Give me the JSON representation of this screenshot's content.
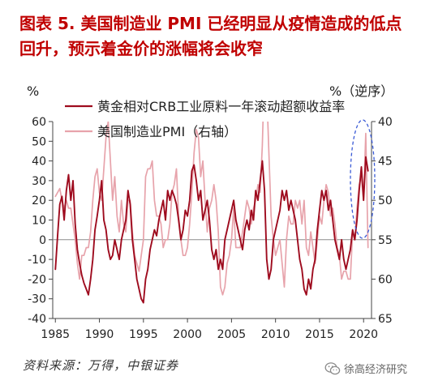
{
  "colors": {
    "title": "#c00000"
  },
  "chart_data": {
    "type": "line",
    "title_lines": [
      "图表 5. 美国制造业 PMI 已经明显从疫情造成的低点",
      "回升，预示着金价的涨幅将会收窄"
    ],
    "ylabel": "%",
    "y2label": "%（逆序）",
    "ylim": [
      -40,
      60
    ],
    "y2lim": [
      40,
      65
    ],
    "y2_reversed": true,
    "xlim": [
      1984.7,
      2020.9
    ],
    "y_ticks": [
      60,
      50,
      40,
      30,
      20,
      10,
      0,
      -10,
      -20,
      -30,
      -40
    ],
    "y2_ticks": [
      40,
      45,
      50,
      55,
      60,
      65
    ],
    "x_ticks": [
      1985,
      1990,
      1995,
      2000,
      2005,
      2010,
      2015,
      2020
    ],
    "grid": false,
    "legend_position": "top-left",
    "highlight_color": "#3b5bd6",
    "x": [
      1985,
      1985.25,
      1985.5,
      1985.75,
      1986,
      1986.25,
      1986.5,
      1986.75,
      1987,
      1987.25,
      1987.5,
      1987.75,
      1988,
      1988.25,
      1988.5,
      1988.75,
      1989,
      1989.25,
      1989.5,
      1989.75,
      1990,
      1990.25,
      1990.5,
      1990.75,
      1991,
      1991.25,
      1991.5,
      1991.75,
      1992,
      1992.25,
      1992.5,
      1992.75,
      1993,
      1993.25,
      1993.5,
      1993.75,
      1994,
      1994.25,
      1994.5,
      1994.75,
      1995,
      1995.25,
      1995.5,
      1995.75,
      1996,
      1996.25,
      1996.5,
      1996.75,
      1997,
      1997.25,
      1997.5,
      1997.75,
      1998,
      1998.25,
      1998.5,
      1998.75,
      1999,
      1999.25,
      1999.5,
      1999.75,
      2000,
      2000.25,
      2000.5,
      2000.75,
      2001,
      2001.25,
      2001.5,
      2001.75,
      2002,
      2002.25,
      2002.5,
      2002.75,
      2003,
      2003.25,
      2003.5,
      2003.75,
      2004,
      2004.25,
      2004.5,
      2004.75,
      2005,
      2005.25,
      2005.5,
      2005.75,
      2006,
      2006.25,
      2006.5,
      2006.75,
      2007,
      2007.25,
      2007.5,
      2007.75,
      2008,
      2008.25,
      2008.5,
      2008.75,
      2009,
      2009.25,
      2009.5,
      2009.75,
      2010,
      2010.25,
      2010.5,
      2010.75,
      2011,
      2011.25,
      2011.5,
      2011.75,
      2012,
      2012.25,
      2012.5,
      2012.75,
      2013,
      2013.25,
      2013.5,
      2013.75,
      2014,
      2014.25,
      2014.5,
      2014.75,
      2015,
      2015.25,
      2015.5,
      2015.75,
      2016,
      2016.25,
      2016.5,
      2016.75,
      2017,
      2017.25,
      2017.5,
      2017.75,
      2018,
      2018.25,
      2018.5,
      2018.75,
      2019,
      2019.25,
      2019.5,
      2019.75,
      2020,
      2020.25,
      2020.5
    ],
    "series": [
      {
        "name": "黄金相对CRB工业原料一年滚动超额收益率",
        "right_axis": false,
        "color": "#9e0b1e",
        "values": [
          -15,
          2,
          18,
          22,
          10,
          25,
          33,
          20,
          30,
          8,
          -5,
          -12,
          -18,
          -22,
          -25,
          -28,
          -20,
          -10,
          5,
          12,
          20,
          30,
          10,
          5,
          -5,
          -10,
          -8,
          0,
          -5,
          -10,
          0,
          5,
          10,
          25,
          18,
          0,
          -10,
          -20,
          -25,
          -30,
          -32,
          -20,
          -15,
          -5,
          0,
          5,
          2,
          10,
          15,
          20,
          10,
          25,
          20,
          25,
          22,
          18,
          10,
          0,
          5,
          15,
          12,
          20,
          35,
          38,
          30,
          20,
          25,
          10,
          15,
          20,
          10,
          -5,
          -10,
          -5,
          -15,
          -10,
          -15,
          0,
          5,
          10,
          15,
          20,
          10,
          5,
          0,
          -5,
          5,
          10,
          5,
          15,
          10,
          25,
          20,
          30,
          40,
          25,
          -10,
          -20,
          -15,
          0,
          5,
          10,
          15,
          25,
          20,
          25,
          15,
          20,
          15,
          10,
          0,
          -10,
          -15,
          -25,
          -28,
          -20,
          -25,
          -15,
          -10,
          5,
          15,
          25,
          20,
          25,
          15,
          20,
          10,
          0,
          -5,
          -10,
          0,
          -10,
          -15,
          -10,
          -5,
          5,
          0,
          10,
          25,
          37,
          20,
          42,
          35
        ]
      },
      {
        "name": "美国制造业PMI（右轴）",
        "right_axis": true,
        "color": "#e7a3ab",
        "values": [
          49.5,
          49,
          48.5,
          50,
          51,
          50,
          51,
          51,
          53,
          55,
          58,
          60,
          57,
          57,
          56,
          56,
          54,
          50,
          47,
          46,
          49,
          50,
          46,
          42,
          40,
          45,
          50,
          47,
          52,
          54,
          50,
          53,
          54,
          50,
          50,
          54,
          57,
          58,
          59,
          57,
          55,
          47,
          46,
          46,
          45,
          50,
          52,
          52,
          53,
          56,
          55,
          55,
          53,
          49,
          48,
          46,
          52,
          55,
          57,
          57,
          56,
          53,
          49,
          44,
          41,
          42,
          47,
          45,
          50,
          54,
          51,
          50,
          48,
          50,
          54,
          61,
          62,
          61,
          58,
          57,
          55,
          51,
          56,
          56,
          56,
          54,
          52,
          50,
          51,
          53,
          51,
          50,
          48,
          49,
          43,
          33,
          36,
          44,
          52,
          55,
          57,
          56,
          55,
          58,
          61,
          55,
          52,
          53,
          53,
          50,
          51,
          50,
          53,
          50,
          56,
          57,
          54,
          56,
          58,
          55,
          52,
          53,
          50,
          48,
          49,
          52,
          51,
          53,
          56,
          57,
          60,
          59,
          59,
          60,
          60,
          54,
          55,
          51,
          48,
          47,
          50,
          41.5,
          56
        ]
      }
    ]
  },
  "source": "资料来源：万得，中银证券",
  "watermark": {
    "icon": "wechat-icon",
    "text": "徐高经济研究"
  }
}
